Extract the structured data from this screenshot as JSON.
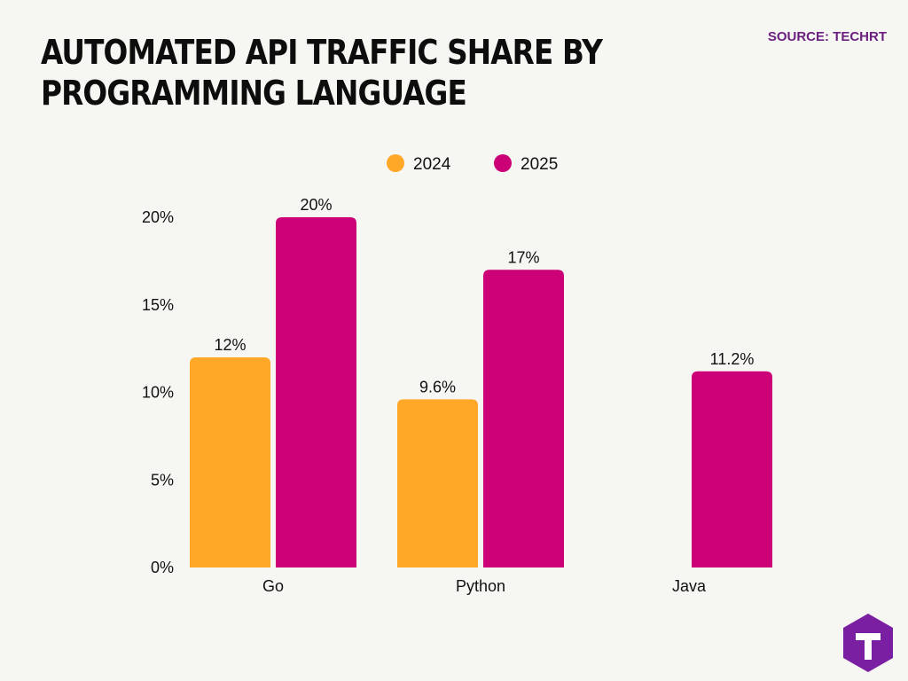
{
  "title": "AUTOMATED API TRAFFIC SHARE BY PROGRAMMING LANGUAGE",
  "source": "SOURCE: TECHRT",
  "logo": {
    "icon": "techrt-logo-icon",
    "letter": "T",
    "color": "#7a1fa2"
  },
  "chart_data": {
    "type": "bar",
    "categories": [
      "Go",
      "Python",
      "Java"
    ],
    "series": [
      {
        "name": "2024",
        "color": "#ffa726",
        "values": [
          12,
          9.6,
          null
        ],
        "labels": [
          "12%",
          "9.6%",
          ""
        ]
      },
      {
        "name": "2025",
        "color": "#cc0077",
        "values": [
          20,
          17,
          11.2
        ],
        "labels": [
          "20%",
          "17%",
          "11.2%"
        ]
      }
    ],
    "yticks": [
      {
        "value": 0,
        "label": "0%"
      },
      {
        "value": 5,
        "label": "5%"
      },
      {
        "value": 10,
        "label": "10%"
      },
      {
        "value": 15,
        "label": "15%"
      },
      {
        "value": 20,
        "label": "20%"
      }
    ],
    "ylim": [
      0,
      20
    ],
    "grid": false,
    "legend_position": "top-center",
    "xlabel": "",
    "ylabel": ""
  }
}
